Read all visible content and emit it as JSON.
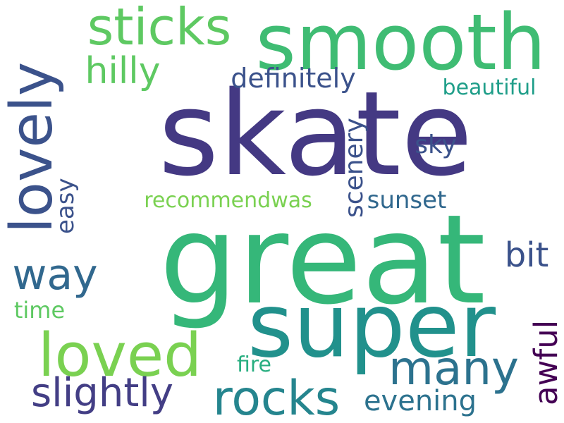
{
  "palette": {
    "dark_indigo": "#443983",
    "slate_blue": "#3b528b",
    "steel_blue": "#31688e",
    "teal": "#21918c",
    "sea_green": "#28ae80",
    "green": "#35b779",
    "light_green": "#5ec962",
    "lime": "#7ad151",
    "deep_purple": "#440154"
  },
  "words": [
    {
      "id": "skate",
      "text": "skate",
      "color": "#443983"
    },
    {
      "id": "great",
      "text": "great",
      "color": "#35b779"
    },
    {
      "id": "smooth",
      "text": "smooth",
      "color": "#3fbc73"
    },
    {
      "id": "super",
      "text": "super",
      "color": "#21918c"
    },
    {
      "id": "lovely",
      "text": "lovely",
      "color": "#3b528b"
    },
    {
      "id": "loved",
      "text": "loved",
      "color": "#7ad151"
    },
    {
      "id": "sticks",
      "text": "sticks",
      "color": "#5ec962"
    },
    {
      "id": "many",
      "text": "many",
      "color": "#2c728e"
    },
    {
      "id": "rocks",
      "text": "rocks",
      "color": "#25858e"
    },
    {
      "id": "way",
      "text": "way",
      "color": "#31688e"
    },
    {
      "id": "slightly",
      "text": "slightly",
      "color": "#433e85"
    },
    {
      "id": "hilly",
      "text": "hilly",
      "color": "#5ec962"
    },
    {
      "id": "definitely",
      "text": "definitely",
      "color": "#3b528b"
    },
    {
      "id": "awful",
      "text": "awful",
      "color": "#440154"
    },
    {
      "id": "bit",
      "text": "bit",
      "color": "#3b528b"
    },
    {
      "id": "evening",
      "text": "evening",
      "color": "#2c728e"
    },
    {
      "id": "beautiful",
      "text": "beautiful",
      "color": "#1f9e89"
    },
    {
      "id": "recommendwas",
      "text": "recommendwas",
      "color": "#7ad151"
    },
    {
      "id": "sunset",
      "text": "sunset",
      "color": "#31688e"
    },
    {
      "id": "scenery",
      "text": "scenery",
      "color": "#3b528b"
    },
    {
      "id": "sky",
      "text": "sky",
      "color": "#3b528b"
    },
    {
      "id": "fire",
      "text": "fire",
      "color": "#28ae80"
    },
    {
      "id": "easy",
      "text": "easy",
      "color": "#3b528b"
    },
    {
      "id": "time",
      "text": "time",
      "color": "#5ec962"
    }
  ]
}
